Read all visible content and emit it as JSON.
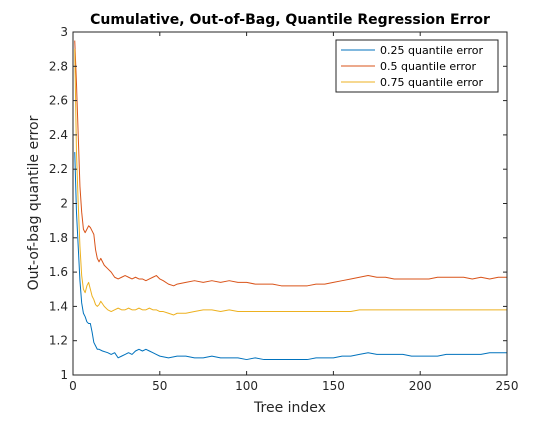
{
  "chart_data": {
    "type": "line",
    "title": "Cumulative, Out-of-Bag, Quantile Regression Error",
    "xlabel": "Tree index",
    "ylabel": "Out-of-bag quantile error",
    "xlim": [
      0,
      250
    ],
    "ylim": [
      1,
      3
    ],
    "xticks": [
      0,
      50,
      100,
      150,
      200,
      250
    ],
    "yticks": [
      1,
      1.2,
      1.4,
      1.6,
      1.8,
      2,
      2.2,
      2.4,
      2.6,
      2.8,
      3
    ],
    "grid": false,
    "legend_position": "top-right",
    "series": [
      {
        "name": "0.25 quantile error",
        "color": "#0072BD",
        "points": [
          [
            1,
            2.3
          ],
          [
            2,
            1.95
          ],
          [
            3,
            1.75
          ],
          [
            4,
            1.55
          ],
          [
            5,
            1.42
          ],
          [
            6,
            1.36
          ],
          [
            7,
            1.34
          ],
          [
            8,
            1.31
          ],
          [
            9,
            1.3
          ],
          [
            10,
            1.3
          ],
          [
            11,
            1.25
          ],
          [
            12,
            1.19
          ],
          [
            13,
            1.17
          ],
          [
            14,
            1.15
          ],
          [
            15,
            1.15
          ],
          [
            17,
            1.14
          ],
          [
            20,
            1.13
          ],
          [
            22,
            1.12
          ],
          [
            24,
            1.13
          ],
          [
            26,
            1.1
          ],
          [
            28,
            1.11
          ],
          [
            30,
            1.12
          ],
          [
            32,
            1.13
          ],
          [
            34,
            1.12
          ],
          [
            36,
            1.14
          ],
          [
            38,
            1.15
          ],
          [
            40,
            1.14
          ],
          [
            42,
            1.15
          ],
          [
            44,
            1.14
          ],
          [
            46,
            1.13
          ],
          [
            48,
            1.12
          ],
          [
            50,
            1.11
          ],
          [
            55,
            1.1
          ],
          [
            60,
            1.11
          ],
          [
            65,
            1.11
          ],
          [
            70,
            1.1
          ],
          [
            75,
            1.1
          ],
          [
            80,
            1.11
          ],
          [
            85,
            1.1
          ],
          [
            90,
            1.1
          ],
          [
            95,
            1.1
          ],
          [
            100,
            1.09
          ],
          [
            105,
            1.1
          ],
          [
            110,
            1.09
          ],
          [
            115,
            1.09
          ],
          [
            120,
            1.09
          ],
          [
            125,
            1.09
          ],
          [
            130,
            1.09
          ],
          [
            135,
            1.09
          ],
          [
            140,
            1.1
          ],
          [
            145,
            1.1
          ],
          [
            150,
            1.1
          ],
          [
            155,
            1.11
          ],
          [
            160,
            1.11
          ],
          [
            165,
            1.12
          ],
          [
            170,
            1.13
          ],
          [
            175,
            1.12
          ],
          [
            180,
            1.12
          ],
          [
            185,
            1.12
          ],
          [
            190,
            1.12
          ],
          [
            195,
            1.11
          ],
          [
            200,
            1.11
          ],
          [
            205,
            1.11
          ],
          [
            210,
            1.11
          ],
          [
            215,
            1.12
          ],
          [
            220,
            1.12
          ],
          [
            225,
            1.12
          ],
          [
            230,
            1.12
          ],
          [
            235,
            1.12
          ],
          [
            240,
            1.13
          ],
          [
            245,
            1.13
          ],
          [
            250,
            1.13
          ]
        ]
      },
      {
        "name": "0.5 quantile error",
        "color": "#D95319",
        "points": [
          [
            1,
            2.95
          ],
          [
            2,
            2.7
          ],
          [
            3,
            2.4
          ],
          [
            4,
            2.1
          ],
          [
            5,
            1.95
          ],
          [
            6,
            1.85
          ],
          [
            7,
            1.83
          ],
          [
            8,
            1.85
          ],
          [
            9,
            1.87
          ],
          [
            10,
            1.86
          ],
          [
            11,
            1.84
          ],
          [
            12,
            1.82
          ],
          [
            13,
            1.73
          ],
          [
            14,
            1.68
          ],
          [
            15,
            1.66
          ],
          [
            16,
            1.68
          ],
          [
            18,
            1.64
          ],
          [
            20,
            1.62
          ],
          [
            22,
            1.6
          ],
          [
            24,
            1.57
          ],
          [
            26,
            1.56
          ],
          [
            28,
            1.57
          ],
          [
            30,
            1.58
          ],
          [
            32,
            1.57
          ],
          [
            34,
            1.56
          ],
          [
            36,
            1.57
          ],
          [
            38,
            1.56
          ],
          [
            40,
            1.56
          ],
          [
            42,
            1.55
          ],
          [
            44,
            1.56
          ],
          [
            46,
            1.57
          ],
          [
            48,
            1.58
          ],
          [
            50,
            1.56
          ],
          [
            52,
            1.55
          ],
          [
            55,
            1.53
          ],
          [
            58,
            1.52
          ],
          [
            60,
            1.53
          ],
          [
            65,
            1.54
          ],
          [
            70,
            1.55
          ],
          [
            75,
            1.54
          ],
          [
            80,
            1.55
          ],
          [
            85,
            1.54
          ],
          [
            90,
            1.55
          ],
          [
            95,
            1.54
          ],
          [
            100,
            1.54
          ],
          [
            105,
            1.53
          ],
          [
            110,
            1.53
          ],
          [
            115,
            1.53
          ],
          [
            120,
            1.52
          ],
          [
            125,
            1.52
          ],
          [
            130,
            1.52
          ],
          [
            135,
            1.52
          ],
          [
            140,
            1.53
          ],
          [
            145,
            1.53
          ],
          [
            150,
            1.54
          ],
          [
            155,
            1.55
          ],
          [
            160,
            1.56
          ],
          [
            165,
            1.57
          ],
          [
            170,
            1.58
          ],
          [
            175,
            1.57
          ],
          [
            180,
            1.57
          ],
          [
            185,
            1.56
          ],
          [
            190,
            1.56
          ],
          [
            195,
            1.56
          ],
          [
            200,
            1.56
          ],
          [
            205,
            1.56
          ],
          [
            210,
            1.57
          ],
          [
            215,
            1.57
          ],
          [
            220,
            1.57
          ],
          [
            225,
            1.57
          ],
          [
            230,
            1.56
          ],
          [
            235,
            1.57
          ],
          [
            240,
            1.56
          ],
          [
            245,
            1.57
          ],
          [
            250,
            1.57
          ]
        ]
      },
      {
        "name": "0.75 quantile error",
        "color": "#EDB120",
        "points": [
          [
            1,
            2.9
          ],
          [
            2,
            2.3
          ],
          [
            3,
            2.0
          ],
          [
            4,
            1.75
          ],
          [
            5,
            1.58
          ],
          [
            6,
            1.5
          ],
          [
            7,
            1.48
          ],
          [
            8,
            1.52
          ],
          [
            9,
            1.54
          ],
          [
            10,
            1.5
          ],
          [
            11,
            1.46
          ],
          [
            12,
            1.44
          ],
          [
            13,
            1.41
          ],
          [
            14,
            1.4
          ],
          [
            15,
            1.41
          ],
          [
            16,
            1.43
          ],
          [
            18,
            1.4
          ],
          [
            20,
            1.38
          ],
          [
            22,
            1.37
          ],
          [
            24,
            1.38
          ],
          [
            26,
            1.39
          ],
          [
            28,
            1.38
          ],
          [
            30,
            1.38
          ],
          [
            32,
            1.39
          ],
          [
            34,
            1.38
          ],
          [
            36,
            1.38
          ],
          [
            38,
            1.39
          ],
          [
            40,
            1.38
          ],
          [
            42,
            1.38
          ],
          [
            44,
            1.39
          ],
          [
            46,
            1.38
          ],
          [
            48,
            1.38
          ],
          [
            50,
            1.37
          ],
          [
            52,
            1.37
          ],
          [
            55,
            1.36
          ],
          [
            58,
            1.35
          ],
          [
            60,
            1.36
          ],
          [
            65,
            1.36
          ],
          [
            70,
            1.37
          ],
          [
            75,
            1.38
          ],
          [
            80,
            1.38
          ],
          [
            85,
            1.37
          ],
          [
            90,
            1.38
          ],
          [
            95,
            1.37
          ],
          [
            100,
            1.37
          ],
          [
            105,
            1.37
          ],
          [
            110,
            1.37
          ],
          [
            115,
            1.37
          ],
          [
            120,
            1.37
          ],
          [
            125,
            1.37
          ],
          [
            130,
            1.37
          ],
          [
            135,
            1.37
          ],
          [
            140,
            1.37
          ],
          [
            145,
            1.37
          ],
          [
            150,
            1.37
          ],
          [
            155,
            1.37
          ],
          [
            160,
            1.37
          ],
          [
            165,
            1.38
          ],
          [
            170,
            1.38
          ],
          [
            175,
            1.38
          ],
          [
            180,
            1.38
          ],
          [
            185,
            1.38
          ],
          [
            190,
            1.38
          ],
          [
            195,
            1.38
          ],
          [
            200,
            1.38
          ],
          [
            205,
            1.38
          ],
          [
            210,
            1.38
          ],
          [
            215,
            1.38
          ],
          [
            220,
            1.38
          ],
          [
            225,
            1.38
          ],
          [
            230,
            1.38
          ],
          [
            235,
            1.38
          ],
          [
            240,
            1.38
          ],
          [
            245,
            1.38
          ],
          [
            250,
            1.38
          ]
        ]
      }
    ]
  }
}
